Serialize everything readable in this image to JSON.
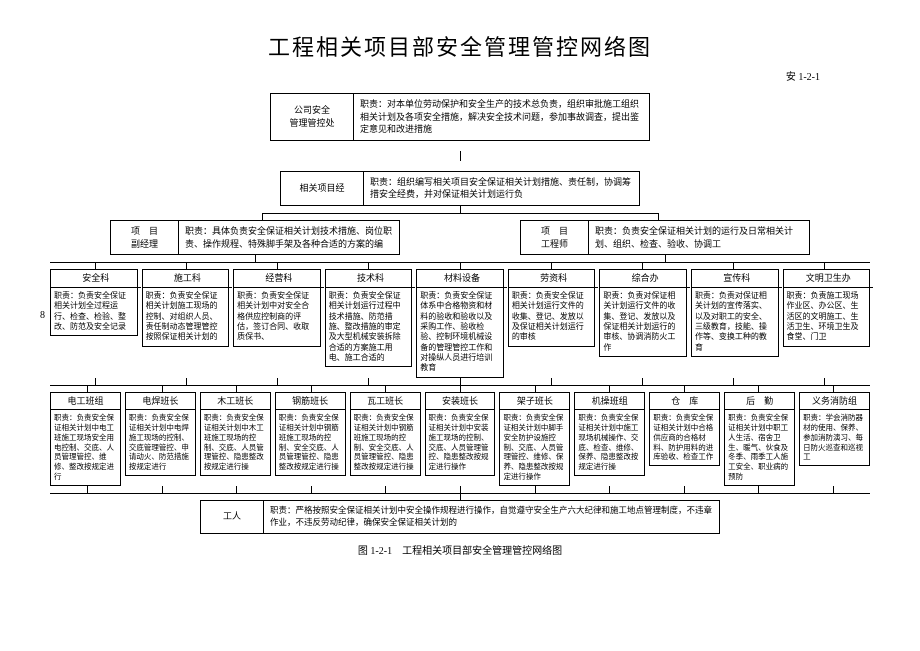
{
  "title": "工程相关项目部安全管理管控网络图",
  "code": "安 1-2-1",
  "caption": "图 1-2-1　工程相关项目部安全管理管控网络图",
  "page_num": "8",
  "colors": {
    "border": "#000000",
    "bg": "#ffffff",
    "text": "#000000"
  },
  "top": {
    "label": "公司安全\n管理管控处",
    "desc": "职责：对本单位劳动保护和安全生产的技术总负责，组织审批施工组织相关计划及各项安全措施，解决安全技术问题，参加事故调查，提出鉴定意见和改进措施"
  },
  "pm": {
    "label": "相关项目经",
    "desc": "职责：组织编写相关项目安全保证相关计划措施、责任制，协调筹措安全经费，并对保证相关计划运行负"
  },
  "managers": [
    {
      "label": "项　目\n副经理",
      "desc": "职责：具体负责安全保证相关计划技术措施、岗位职责、操作规程、特殊脚手架及各种合适的方案的编"
    },
    {
      "label": "项　目\n工程师",
      "desc": "职责：负责安全保证相关计划的运行及日常相关计划、组织、检查、验收、协调工"
    }
  ],
  "depts": [
    {
      "label": "安全科",
      "desc": "职责：负责安全保证相关计划全过程运行、检查、检验、整改、防范及安全记录"
    },
    {
      "label": "施工科",
      "desc": "职责：负责安全保证相关计划施工现场的控制、对组织人员、责任制动态管理管控按照保证相关计划的"
    },
    {
      "label": "经营科",
      "desc": "职责：负责安全保证相关计划中对安全合格供应控制商的评估，签订合同、收取质保书、"
    },
    {
      "label": "技术科",
      "desc": "职责：负责安全保证相关计划运行过程中技术措施、防范措施、整改措施的审定及大型机械安装拆除合适的方案施工用电、施工合适的"
    },
    {
      "label": "材料设备",
      "desc": "职责：负责安全保证体系中合格物资和材料的验收和验收以及采购工作、验收检验、控制环境机械设备的管理管控工作和对操纵人员进行培训教育"
    },
    {
      "label": "劳资科",
      "desc": "职责：负责安全保证相关计划运行文件的收集、登记、发放以及保证相关计划运行的审核"
    },
    {
      "label": "综合办",
      "desc": "职责：负责对保证相关计划运行文件的收集、登记、发放以及保证相关计划运行的审核、协调消防火工作"
    },
    {
      "label": "宣传科",
      "desc": "职责：负责对保证相关计划的宣传落实、以及对职工的安全、三级教育，技能、操作等、变换工种的教育"
    },
    {
      "label": "文明卫生办",
      "desc": "职责：负责施工现场作业区、办公区、生活区的文明施工、生活卫生、环境卫生及食堂、门卫"
    }
  ],
  "teams": [
    {
      "label": "电工班组",
      "desc": "职责：负责安全保证相关计划中电工班施工现场安全用电控制、交底、人员管理管控、维修、整改按规定进行"
    },
    {
      "label": "电焊班长",
      "desc": "职责：负责安全保证相关计划中电焊施工现场的控制、交底管理管控、申请动火、防范措施按规定进行"
    },
    {
      "label": "木工班长",
      "desc": "职责：负责安全保证相关计划中木工班施工现场的控制、交底、人员管理管控、隐患整改按规定进行操"
    },
    {
      "label": "钢筋班长",
      "desc": "职责：负责安全保证相关计划中钢筋班施工现场的控制、安全交底、人员管理管控、隐患整改按规定进行操"
    },
    {
      "label": "瓦工班长",
      "desc": "职责：负责安全保证相关计划中钢筋班施工现场的控制、安全交底、人员管理管控、隐患整改按规定进行操"
    },
    {
      "label": "安装班长",
      "desc": "职责：负责安全保证相关计划中安装施工现场的控制、交底、人员管理管控、隐患整改按规定进行操作"
    },
    {
      "label": "架子班长",
      "desc": "职责：负责安全保证相关计划中脚手安全防护设施控制、交底、人员管理管控、维修、保养、隐患整改按规定进行操作"
    },
    {
      "label": "机操班组",
      "desc": "职责：负责安全保证相关计划中施工现场机械操作、交底、检查、维修、保养、隐患整改按规定进行操"
    },
    {
      "label": "仓　库",
      "desc": "职责：负责安全保证相关计划中合格供应商的合格材料、防护用料的进库验收、检查工作"
    },
    {
      "label": "后　勤",
      "desc": "职责：负责安全保证相关计划中职工人生活、宿舍卫生、暖气、伙食及冬季、雨季工人施工安全、职业病的预防"
    },
    {
      "label": "义务消防组",
      "desc": "职责：学会消防器材的使用、保养、参加消防演习、每日防火巡查和巡视工"
    }
  ],
  "worker": {
    "label": "工人",
    "desc": "职责：严格按照安全保证相关计划中安全操作规程进行操作，自觉遵守安全生产六大纪律和施工地点管理制度，不违章作业，不违反劳动纪律，确保安全保证相关计划的"
  }
}
